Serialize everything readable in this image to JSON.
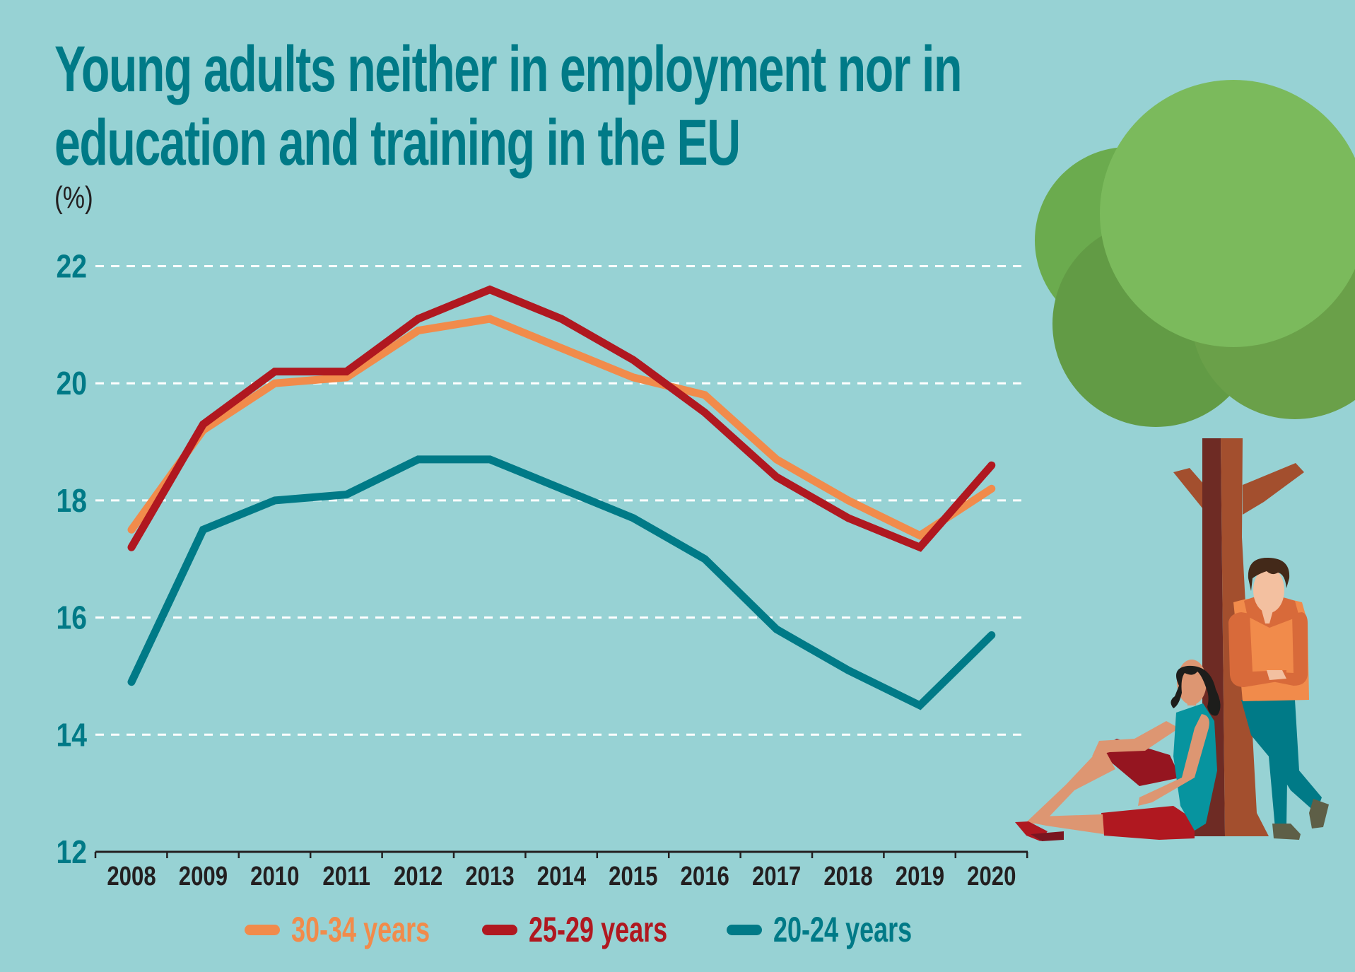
{
  "header": {
    "title_line_1": "Young adults neither in employment nor in",
    "title_line_2": "education and training in the EU",
    "unit": "(%)"
  },
  "colors": {
    "background": "#97d2d4",
    "title": "#007a87",
    "axis_text": "#231f20",
    "gridline": "#ffffff",
    "series_30_34": "#f18b4b",
    "series_25_29": "#b01820",
    "series_20_24": "#007a87"
  },
  "chart_data": {
    "type": "line",
    "title": "Young adults neither in employment nor in education and training in the EU",
    "ylabel": "(%)",
    "xlabel": "",
    "x": [
      "2008",
      "2009",
      "2010",
      "2011",
      "2012",
      "2013",
      "2014",
      "2015",
      "2016",
      "2017",
      "2018",
      "2019",
      "2020"
    ],
    "ylim": [
      12,
      22
    ],
    "yticks": [
      "12",
      "14",
      "16",
      "18",
      "20",
      "22"
    ],
    "grid": "horizontal dashed",
    "legend_position": "bottom",
    "series": [
      {
        "name": "30-34 years",
        "color": "#f18b4b",
        "values": [
          17.5,
          19.2,
          20.0,
          20.1,
          20.9,
          21.1,
          20.6,
          20.1,
          19.8,
          18.7,
          18.0,
          17.4,
          18.2
        ]
      },
      {
        "name": "25-29 years",
        "color": "#b01820",
        "values": [
          17.2,
          19.3,
          20.2,
          20.2,
          21.1,
          21.6,
          21.1,
          20.4,
          19.5,
          18.4,
          17.7,
          17.2,
          18.6
        ]
      },
      {
        "name": "20-24 years",
        "color": "#007a87",
        "values": [
          14.9,
          17.5,
          18.0,
          18.1,
          18.7,
          18.7,
          18.2,
          17.7,
          17.0,
          15.8,
          15.1,
          14.5,
          15.7
        ]
      }
    ]
  },
  "illustration": {
    "description": "tree with two young adults",
    "icons": [
      "tree-icon",
      "man-standing-icon",
      "woman-sitting-icon"
    ]
  }
}
